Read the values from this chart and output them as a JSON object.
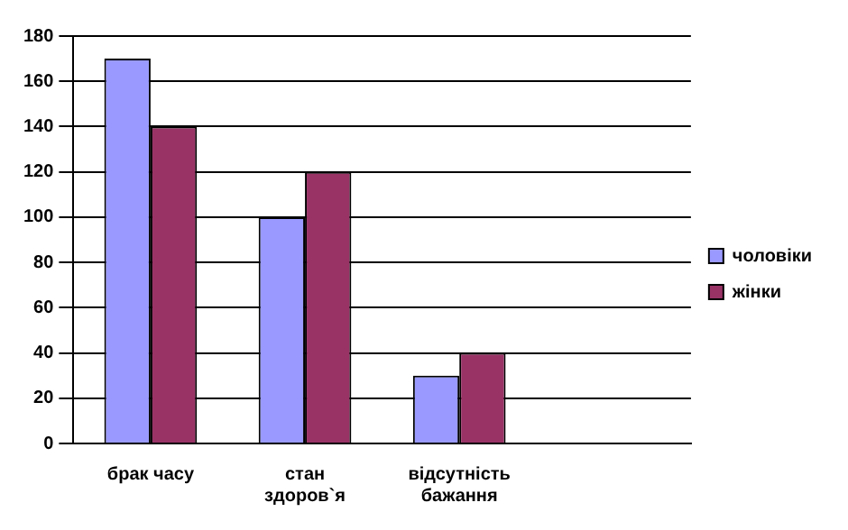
{
  "chart_data": {
    "type": "bar",
    "categories": [
      "брак часу",
      "стан здоров`я",
      "відсутність бажання",
      null
    ],
    "series": [
      {
        "name": "чоловіки",
        "color": "#9999ff",
        "values": [
          170,
          100,
          30,
          null
        ]
      },
      {
        "name": "жінки",
        "color": "#993366",
        "values": [
          140,
          120,
          40,
          null
        ]
      }
    ],
    "ylim": [
      0,
      180
    ],
    "yticks": [
      0,
      20,
      40,
      60,
      80,
      100,
      120,
      140,
      160,
      180
    ],
    "grid": "y",
    "legend": "right"
  }
}
